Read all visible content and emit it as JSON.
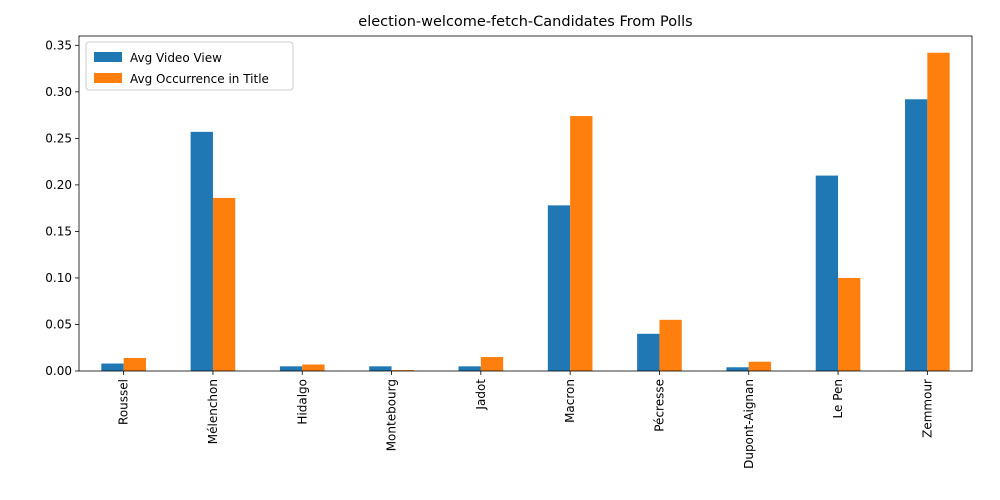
{
  "chart_data": {
    "type": "bar",
    "title": "election-welcome-fetch-Candidates From Polls",
    "xlabel": "",
    "ylabel": "",
    "categories": [
      "Roussel",
      "Mélenchon",
      "Hidalgo",
      "Montebourg",
      "Jadot",
      "Macron",
      "Pécresse",
      "Dupont-Aignan",
      "Le Pen",
      "Zemmour"
    ],
    "series": [
      {
        "name": "Avg Video View",
        "color": "#1f77b4",
        "values": [
          0.008,
          0.257,
          0.005,
          0.005,
          0.005,
          0.178,
          0.04,
          0.004,
          0.21,
          0.292
        ]
      },
      {
        "name": "Avg Occurrence in Title",
        "color": "#ff7f0e",
        "values": [
          0.014,
          0.186,
          0.007,
          0.001,
          0.015,
          0.274,
          0.055,
          0.01,
          0.1,
          0.342
        ]
      }
    ],
    "ylim": [
      0,
      0.36
    ],
    "yticks": [
      "0.00",
      "0.05",
      "0.10",
      "0.15",
      "0.20",
      "0.25",
      "0.30",
      "0.35"
    ],
    "legend": "top-left",
    "grid": false
  }
}
